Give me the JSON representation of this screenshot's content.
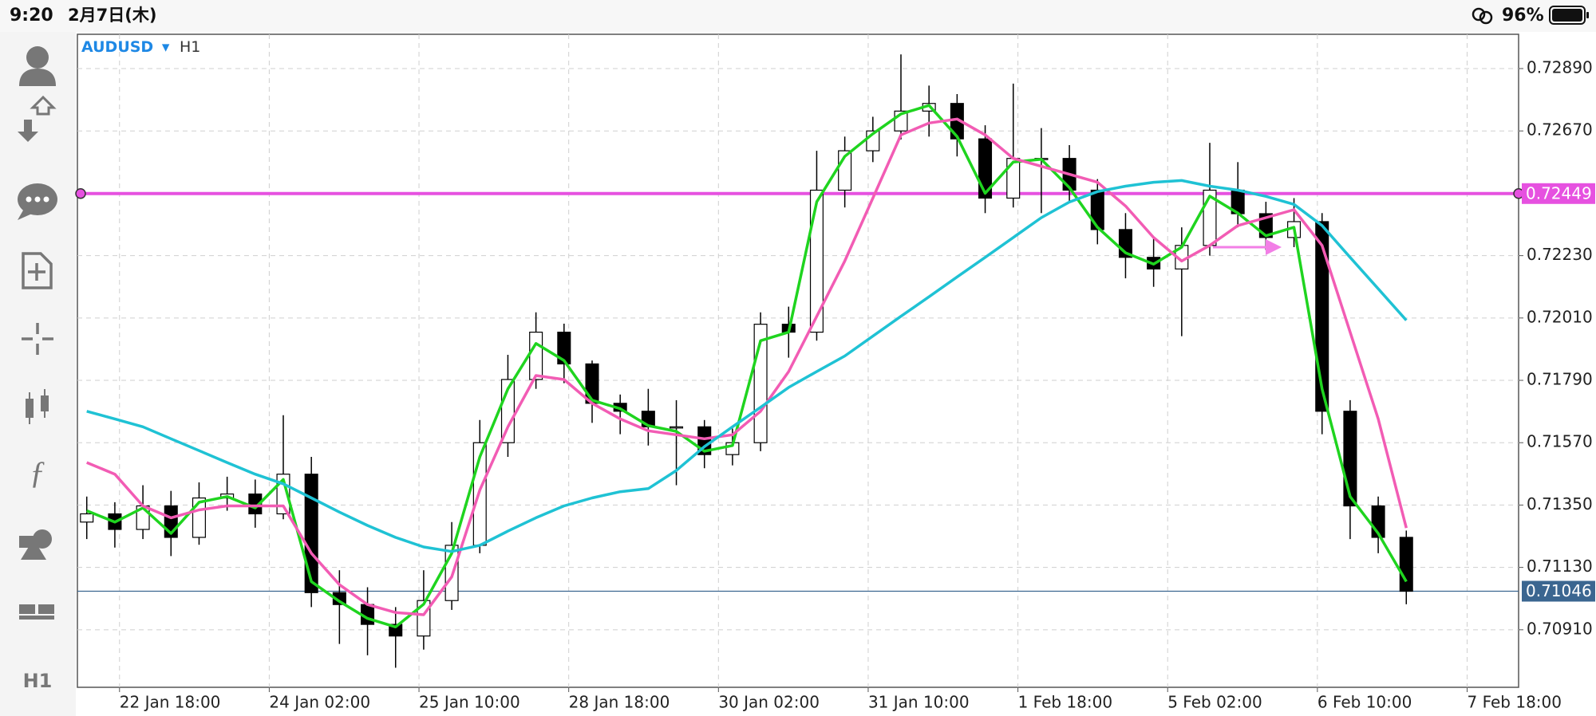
{
  "status_bar": {
    "time": "9:20",
    "date": "2月7日(木)",
    "battery": "96%"
  },
  "symbol": {
    "name": "AUDUSD",
    "marker": "▾",
    "timeframe": "H1"
  },
  "toolbar": {
    "timeframe": "H1"
  },
  "chart_data": {
    "type": "candlestick",
    "x": [
      0,
      6,
      12,
      18,
      24,
      30,
      36,
      42,
      48,
      54,
      60,
      66,
      72,
      78,
      84,
      90,
      96,
      102,
      108,
      114,
      120,
      126,
      132,
      138,
      144,
      150,
      156,
      162,
      168,
      174,
      180,
      186,
      192,
      198,
      204,
      210,
      216,
      222,
      228,
      234,
      240,
      246,
      252,
      258,
      264,
      270,
      276,
      282
    ],
    "open": [
      0.7129,
      0.71319,
      0.71264,
      0.71347,
      0.71236,
      0.71375,
      0.71389,
      0.71319,
      0.71459,
      0.71041,
      0.70999,
      0.70929,
      0.70888,
      0.71013,
      0.71208,
      0.7157,
      0.71793,
      0.7196,
      0.71848,
      0.71709,
      0.71681,
      0.71626,
      0.71626,
      0.71528,
      0.7157,
      0.71988,
      0.7196,
      0.72461,
      0.726,
      0.7267,
      0.7274,
      0.72767,
      0.72642,
      0.72433,
      0.72573,
      0.72573,
      0.72461,
      0.72322,
      0.72224,
      0.72183,
      0.72266,
      0.72461,
      0.72378,
      0.72294,
      0.7235,
      0.71681,
      0.71347,
      0.71236
    ],
    "high": [
      0.7138,
      0.7136,
      0.7142,
      0.714,
      0.7143,
      0.7145,
      0.7144,
      0.71667,
      0.7152,
      0.7112,
      0.7106,
      0.7099,
      0.7112,
      0.7129,
      0.7165,
      0.7188,
      0.7203,
      0.7199,
      0.7186,
      0.7174,
      0.7176,
      0.7172,
      0.7165,
      0.7162,
      0.7203,
      0.7205,
      0.726,
      0.7265,
      0.7272,
      0.7294,
      0.7283,
      0.728,
      0.7269,
      0.72837,
      0.7268,
      0.7262,
      0.725,
      0.7238,
      0.7229,
      0.7233,
      0.72628,
      0.7256,
      0.7242,
      0.72433,
      0.7238,
      0.7172,
      0.7138,
      0.7126
    ],
    "low": [
      0.7123,
      0.712,
      0.7123,
      0.7117,
      0.7121,
      0.7133,
      0.7127,
      0.713,
      0.7099,
      0.7086,
      0.7082,
      0.70776,
      0.7084,
      0.7098,
      0.7118,
      0.7152,
      0.7176,
      0.7178,
      0.7164,
      0.716,
      0.7156,
      0.7142,
      0.7148,
      0.7149,
      0.7154,
      0.7187,
      0.7193,
      0.724,
      0.7256,
      0.7264,
      0.7265,
      0.7258,
      0.7238,
      0.724,
      0.7238,
      0.7242,
      0.7227,
      0.7215,
      0.7212,
      0.71946,
      0.7223,
      0.7233,
      0.7225,
      0.7226,
      0.716,
      0.7123,
      0.7118,
      0.71
    ],
    "close": [
      0.71319,
      0.71264,
      0.71347,
      0.71236,
      0.71375,
      0.71389,
      0.71319,
      0.71459,
      0.71041,
      0.70999,
      0.70929,
      0.70888,
      0.71013,
      0.71208,
      0.7157,
      0.71793,
      0.7196,
      0.71848,
      0.71709,
      0.71681,
      0.71626,
      0.71626,
      0.71528,
      0.7157,
      0.71988,
      0.7196,
      0.72461,
      0.726,
      0.7267,
      0.7274,
      0.72767,
      0.72642,
      0.72433,
      0.72573,
      0.72573,
      0.72461,
      0.72322,
      0.72224,
      0.72183,
      0.72266,
      0.72461,
      0.72378,
      0.72294,
      0.7235,
      0.71681,
      0.71347,
      0.71236,
      0.71046
    ],
    "series": [
      {
        "color": "#1fd41f",
        "values": [
          0.7133,
          0.7129,
          0.7134,
          0.7125,
          0.7136,
          0.7138,
          0.7134,
          0.7144,
          0.7108,
          0.7101,
          0.7095,
          0.7092,
          0.71,
          0.7118,
          0.7152,
          0.7176,
          0.7192,
          0.7186,
          0.7172,
          0.7169,
          0.7163,
          0.7161,
          0.7154,
          0.7156,
          0.7193,
          0.7196,
          0.7242,
          0.7258,
          0.7266,
          0.7273,
          0.7276,
          0.7265,
          0.7245,
          0.7256,
          0.7257,
          0.7247,
          0.7233,
          0.7224,
          0.722,
          0.7226,
          0.7244,
          0.7238,
          0.723,
          0.7233,
          0.7176,
          0.7138,
          0.7125,
          0.7108
        ]
      },
      {
        "color": "#f25cb4",
        "values": [
          0.715,
          0.71459,
          0.71347,
          0.71305,
          0.71333,
          0.71347,
          0.71347,
          0.71347,
          0.7118,
          0.71069,
          0.70999,
          0.70971,
          0.70963,
          0.71097,
          0.71403,
          0.71626,
          0.71807,
          0.71793,
          0.71709,
          0.71654,
          0.71612,
          0.71598,
          0.71584,
          0.71598,
          0.71681,
          0.71821,
          0.72016,
          0.72211,
          0.72433,
          0.72656,
          0.72698,
          0.72712,
          0.72656,
          0.72573,
          0.72545,
          0.72517,
          0.72489,
          0.72405,
          0.72294,
          0.72211,
          0.72266,
          0.72336,
          0.72364,
          0.72392,
          0.72266,
          0.7196,
          0.71654,
          0.71269
        ]
      },
      {
        "color": "#1fc2d4",
        "values": [
          0.71681,
          0.71654,
          0.71626,
          0.71584,
          0.71542,
          0.715,
          0.71459,
          0.71425,
          0.71375,
          0.71325,
          0.71278,
          0.71236,
          0.71202,
          0.71186,
          0.71208,
          0.71258,
          0.71305,
          0.71347,
          0.71375,
          0.71397,
          0.71408,
          0.71472,
          0.71556,
          0.71626,
          0.71695,
          0.71765,
          0.71821,
          0.71876,
          0.71946,
          0.72016,
          0.72085,
          0.72155,
          0.72224,
          0.72294,
          0.72364,
          0.72419,
          0.72456,
          0.72475,
          0.72489,
          0.72495,
          0.72475,
          0.72461,
          0.72439,
          0.72411,
          0.72336,
          0.72224,
          0.72113,
          0.72002
        ]
      }
    ],
    "hlines": [
      {
        "value": 0.72449,
        "color": "#e651e0"
      },
      {
        "value": 0.71046,
        "color": "#3b6690"
      }
    ],
    "xlim": [
      -2,
      306
    ],
    "ylim": [
      0.70707,
      0.73011
    ],
    "xticks": [
      {
        "value": 7,
        "label": "22 Jan 18:00"
      },
      {
        "value": 39,
        "label": "24 Jan 02:00"
      },
      {
        "value": 71,
        "label": "25 Jan 10:00"
      },
      {
        "value": 103,
        "label": "28 Jan 18:00"
      },
      {
        "value": 135,
        "label": "30 Jan 02:00"
      },
      {
        "value": 167,
        "label": "31 Jan 10:00"
      },
      {
        "value": 199,
        "label": "1 Feb 18:00"
      },
      {
        "value": 231,
        "label": "5 Feb 02:00"
      },
      {
        "value": 263,
        "label": "6 Feb 10:00"
      },
      {
        "value": 295,
        "label": "7 Feb 18:00"
      }
    ],
    "yticks": [
      {
        "value": 0.7289,
        "label": "0.72890"
      },
      {
        "value": 0.7267,
        "label": "0.72670"
      },
      {
        "value": 0.7223,
        "label": "0.72230"
      },
      {
        "value": 0.7201,
        "label": "0.72010"
      },
      {
        "value": 0.7179,
        "label": "0.71790"
      },
      {
        "value": 0.7157,
        "label": "0.71570"
      },
      {
        "value": 0.7135,
        "label": "0.71350"
      },
      {
        "value": 0.7113,
        "label": "0.71130"
      },
      {
        "value": 0.7091,
        "label": "0.70910"
      }
    ],
    "grid": true,
    "bull_color": "#ffffff",
    "bear_color": "#000000"
  }
}
